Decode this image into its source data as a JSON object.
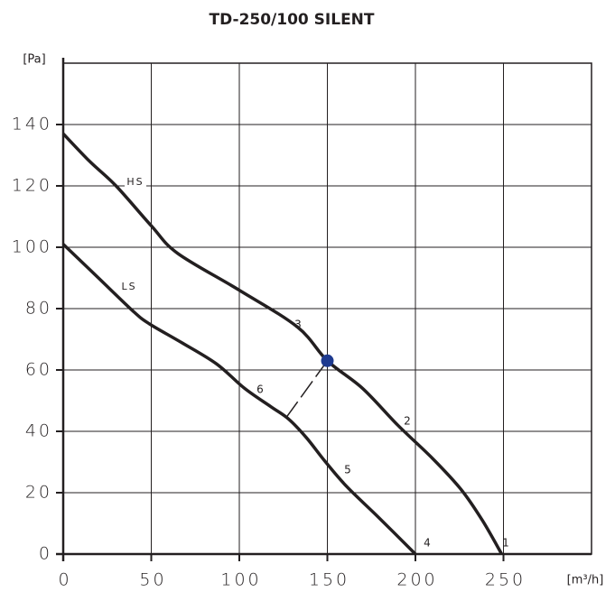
{
  "chart_data": {
    "type": "line",
    "title": "TD-250/100 SILENT",
    "y_label": "[Pa]",
    "x_label": "[m³/h]",
    "xlim": [
      0,
      300
    ],
    "xticks": [
      0,
      50,
      100,
      150,
      200,
      250
    ],
    "ylim": [
      0,
      160
    ],
    "yticks": [
      0,
      20,
      40,
      60,
      80,
      100,
      120,
      140
    ],
    "grid": true,
    "series": [
      {
        "name": "HS",
        "color": "#231f20",
        "x": [
          0,
          15,
          30,
          50,
          65,
          100,
          133,
          150,
          170,
          190,
          210,
          226,
          238,
          249
        ],
        "values": [
          137,
          128,
          120,
          107,
          98,
          86,
          74,
          63,
          54,
          42,
          31,
          21,
          11,
          0
        ]
      },
      {
        "name": "LS",
        "color": "#231f20",
        "x": [
          0,
          20,
          40,
          49,
          67,
          87,
          103,
          118,
          128,
          138,
          149,
          161,
          179,
          200
        ],
        "values": [
          101,
          90,
          79,
          75,
          69,
          62,
          54,
          48,
          44,
          38,
          30,
          22,
          12,
          0
        ]
      }
    ],
    "operating_point": {
      "x": 150,
      "y": 63,
      "color": "#1e3a8f"
    },
    "connector": {
      "x": [
        150,
        126
      ],
      "y": [
        63,
        44
      ]
    },
    "annotations": [
      "1",
      "2",
      "3",
      "4",
      "5",
      "6"
    ]
  }
}
